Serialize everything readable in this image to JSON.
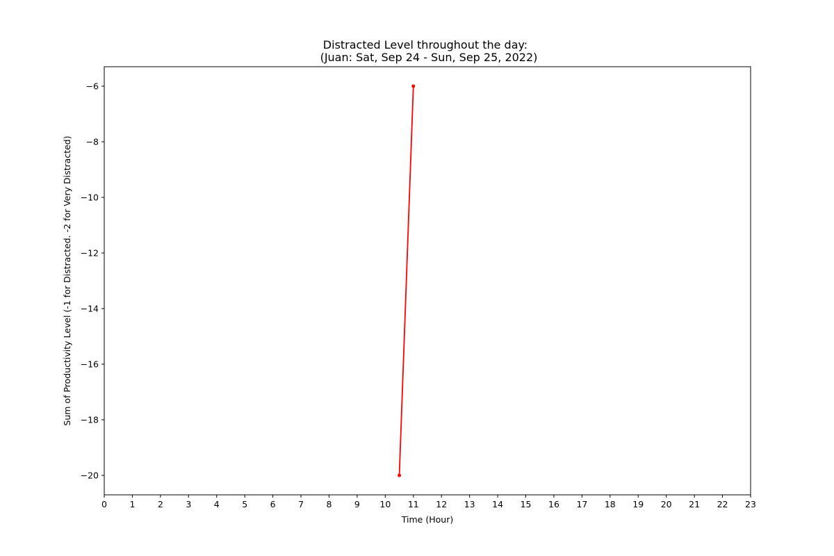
{
  "chart_data": {
    "type": "line",
    "title": "Distracted Level throughout the day:",
    "subtitle": "(Juan: Sat, Sep 24 - Sun, Sep 25, 2022)",
    "xlabel": "Time (Hour)",
    "ylabel": "Sum of Productivity Level (-1 for Distracted. -2 for Very Distracted)",
    "xlim": [
      0,
      23
    ],
    "ylim": [
      -20.7,
      -5.3
    ],
    "xticks": [
      0,
      1,
      2,
      3,
      4,
      5,
      6,
      7,
      8,
      9,
      10,
      11,
      12,
      13,
      14,
      15,
      16,
      17,
      18,
      19,
      20,
      21,
      22,
      23
    ],
    "yticks": [
      -20,
      -18,
      -16,
      -14,
      -12,
      -10,
      -8,
      -6
    ],
    "ytick_labels": [
      "−20",
      "−18",
      "−16",
      "−14",
      "−12",
      "−10",
      "−8",
      "−6"
    ],
    "grid": false,
    "series": [
      {
        "color": "#ff0000",
        "x": [
          10.5,
          11
        ],
        "y": [
          -20,
          -6
        ]
      }
    ]
  }
}
